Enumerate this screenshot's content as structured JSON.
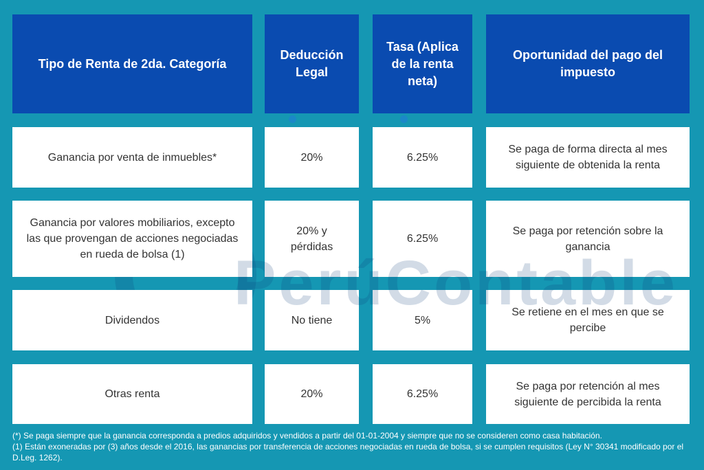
{
  "colors": {
    "background": "#1597b3",
    "header": "#0a4bb0",
    "cell": "#ffffff"
  },
  "table": {
    "headers": [
      "Tipo de Renta de 2da. Categoría",
      "Deducción Legal",
      "Tasa (Aplica de la renta neta)",
      "Oportunidad del pago del impuesto"
    ],
    "rows": [
      {
        "tipo": "Ganancia por venta de inmuebles*",
        "deduccion": "20%",
        "tasa": "6.25%",
        "oportunidad": "Se paga de forma directa al mes siguiente de obtenida la renta"
      },
      {
        "tipo": "Ganancia por valores mobiliarios, excepto las que provengan de acciones negociadas en rueda de bolsa (1)",
        "deduccion": "20% y pérdidas",
        "tasa": "6.25%",
        "oportunidad": "Se paga por retención sobre la ganancia"
      },
      {
        "tipo": "Dividendos",
        "deduccion": "No tiene",
        "tasa": "5%",
        "oportunidad": "Se retiene en el mes en que se percibe"
      },
      {
        "tipo": "Otras renta",
        "deduccion": "20%",
        "tasa": "6.25%",
        "oportunidad": "Se paga por retención al mes siguiente de percibida la renta"
      }
    ]
  },
  "footnotes": [
    "(*) Se paga siempre que la ganancia corresponda a predios adquiridos y vendidos a partir del 01-01-2004 y siempre que no se consideren como casa habitación.",
    "(1) Están exoneradas por (3) años desde el 2016, las ganancias por transferencia de acciones negociadas en rueda de bolsa, si se cumplen requisitos (Ley N° 30341 modificado por el D.Leg. 1262)."
  ],
  "watermark": {
    "text": "PerúContable",
    "icon": "logo-icon"
  }
}
